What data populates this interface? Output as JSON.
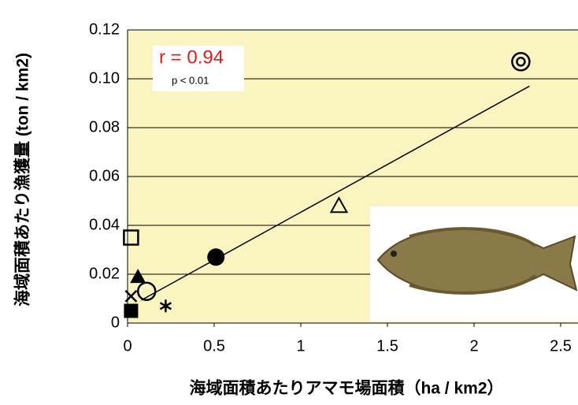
{
  "chart_data": {
    "type": "scatter",
    "x_label": "海域面積あたりアマモ場面積（ha / km2）",
    "y_label": "海域面積あたり漁獲量 (ton / km2)",
    "annotations": [
      "r = 0.94",
      "p < 0.01"
    ],
    "annotation_colors": [
      "#e41a1c",
      "#000000"
    ],
    "xlim": [
      0,
      2.5
    ],
    "xticks": [
      0,
      0.5,
      1,
      1.5,
      2,
      2.5
    ],
    "ylim": [
      0,
      0.12
    ],
    "yticks": [
      0,
      0.02,
      0.04,
      0.06,
      0.08,
      {
        "value": 0.1,
        "label": "0.10"
      },
      0.12
    ],
    "grid": true,
    "background": "#faf5c0",
    "x": [
      2.27,
      1.22,
      0.51,
      0.11,
      0.22,
      0.02,
      0.06,
      0.02,
      0.02
    ],
    "values": [
      0.107,
      0.048,
      0.027,
      0.013,
      0.007,
      0.035,
      0.019,
      0.011,
      0.005
    ],
    "markers": [
      "double-circle",
      "open-triangle",
      "filled-circle",
      "open-circle",
      "asterisk",
      "open-square",
      "filled-triangle",
      "cross",
      "filled-square"
    ],
    "fit_line": {
      "x": [
        0.08,
        2.32
      ],
      "y": [
        0.0094,
        0.097
      ]
    }
  }
}
